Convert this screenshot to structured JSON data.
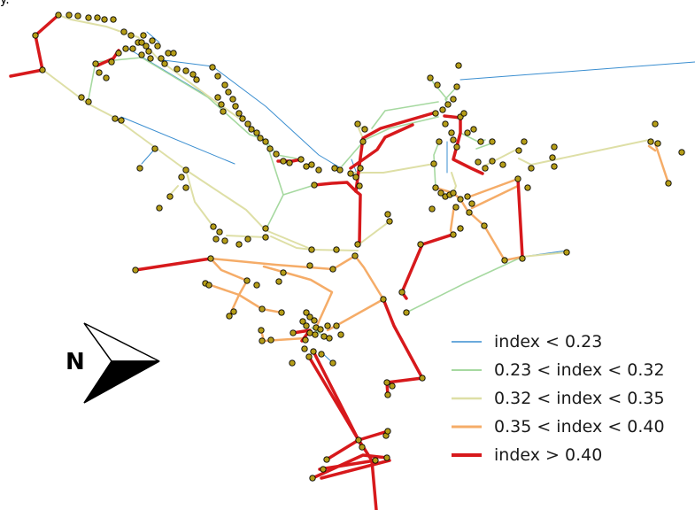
{
  "legend": {
    "items": [
      {
        "label": "index < 0.23",
        "color": "#3a8ed0",
        "width": 1
      },
      {
        "label": "0.23 < index < 0.32",
        "color": "#a6d9a0",
        "width": 1.6
      },
      {
        "label": "0.32 < index < 0.35",
        "color": "#dedfa6",
        "width": 2
      },
      {
        "label": "0.35 < index < 0.40",
        "color": "#f5ac68",
        "width": 2.5
      },
      {
        "label": "index > 0.40",
        "color": "#d7191c",
        "width": 3.5
      }
    ]
  },
  "north_arrow": {
    "label": "N"
  },
  "top_fragment": "y.",
  "node_color": "#b59d18"
}
